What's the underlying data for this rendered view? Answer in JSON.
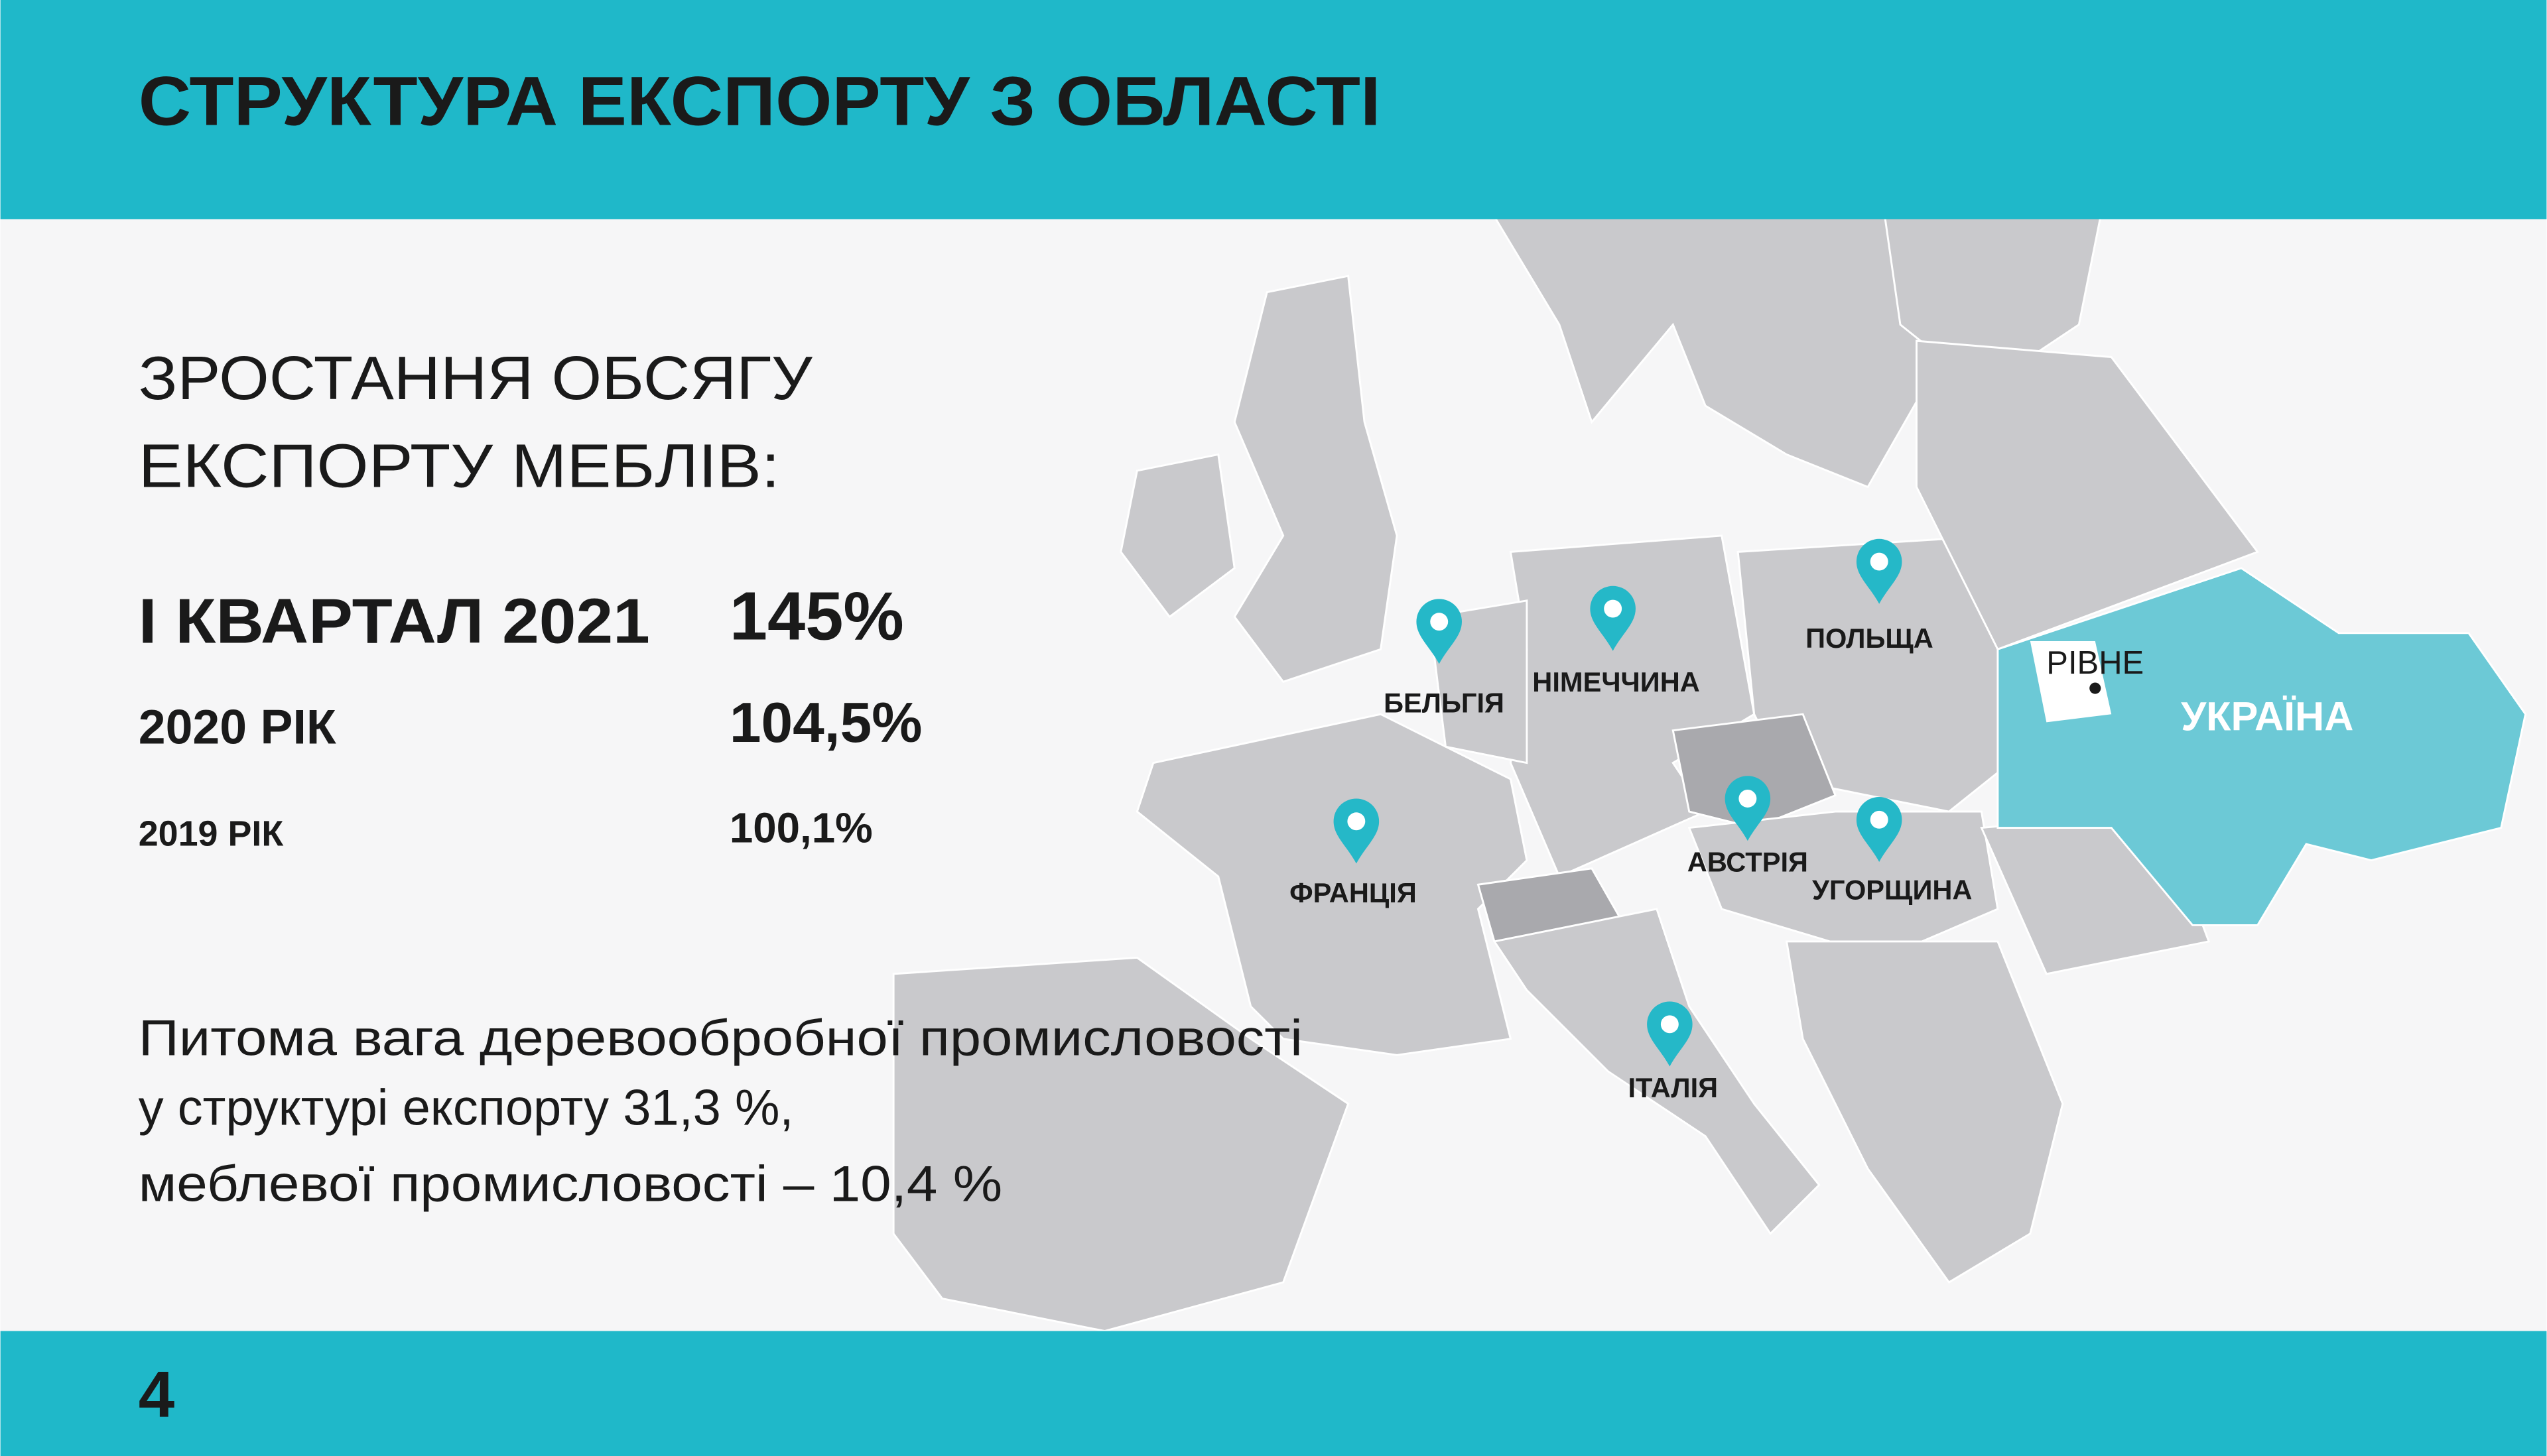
{
  "header": {
    "title": "СТРУКТУРА ЕКСПОРТУ З ОБЛАСТІ"
  },
  "intro": {
    "lines": [
      "ЗРОСТАННЯ ОБСЯГУ",
      "ЕКСПОРТУ МЕБЛІВ:"
    ]
  },
  "stats": [
    {
      "label": "І КВАРТАЛ 2021",
      "value": "145%"
    },
    {
      "label": "2020 РІК",
      "value": "104,5%"
    },
    {
      "label": "2019 РІК",
      "value": "100,1%"
    }
  ],
  "note": {
    "lines": [
      "Питома вага деревообробної промисловості",
      "у структурі експорту 31,3 %,",
      "меблевої промисловості – 10,4 %"
    ]
  },
  "map": {
    "labels": [
      "БЕЛЬГІЯ",
      "НІМЕЧЧИНА",
      "ПОЛЬЩА",
      "ФРАНЦІЯ",
      "АВСТРІЯ",
      "УГОРЩИНА",
      "ІТАЛІЯ"
    ],
    "city": "РІВНЕ",
    "country": "УКРАЇНА"
  },
  "page_number": "4"
}
